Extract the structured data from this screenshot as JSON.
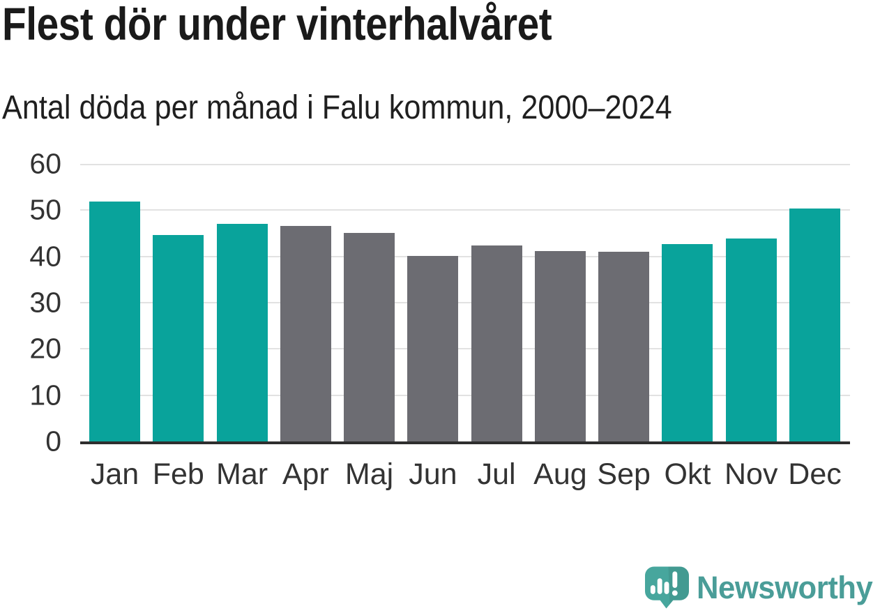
{
  "header": {
    "title": "Flest dör under vinterhalvåret",
    "subtitle": "Antal döda per månad i Falu kommun, 2000–2024"
  },
  "chart_data": {
    "type": "bar",
    "title": "Flest dör under vinterhalvåret",
    "subtitle": "Antal döda per månad i Falu kommun, 2000–2024",
    "categories": [
      "Jan",
      "Feb",
      "Mar",
      "Apr",
      "Maj",
      "Jun",
      "Jul",
      "Aug",
      "Sep",
      "Okt",
      "Nov",
      "Dec"
    ],
    "values": [
      51.9,
      44.7,
      47.0,
      46.6,
      45.1,
      40.1,
      42.4,
      41.2,
      41.0,
      42.7,
      43.9,
      50.4
    ],
    "bar_colors": [
      "highlight",
      "highlight",
      "highlight",
      "muted",
      "muted",
      "muted",
      "muted",
      "muted",
      "muted",
      "highlight",
      "highlight",
      "highlight"
    ],
    "xlabel": "",
    "ylabel": "",
    "ylim": [
      0,
      60
    ],
    "yticks": [
      0,
      10,
      20,
      30,
      40,
      50,
      60
    ],
    "grid": "horizontal",
    "legend": "none"
  },
  "colors": {
    "highlight": "#09a39b",
    "muted": "#6c6c72",
    "gridline": "#e2e2e2",
    "axis": "#2e2e2e",
    "tick_text": "#333333",
    "title_text": "#1a1a1a",
    "brand_teal": "#4a9d98",
    "logo_bubble": "#47a69d"
  },
  "footer": {
    "brand": "Newsworthy"
  }
}
